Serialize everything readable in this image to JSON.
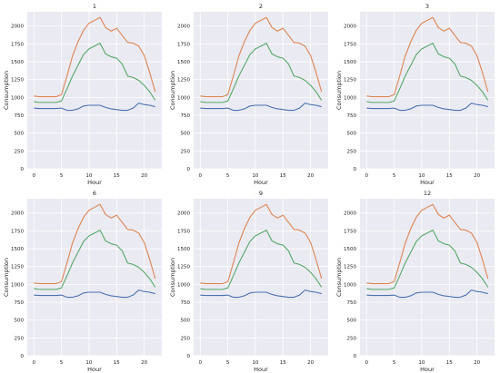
{
  "figure": {
    "colors": {
      "background": "#ffffff",
      "plot_bg": "#eaeaf2",
      "grid": "#ffffff",
      "text": "#222222",
      "series_blue": "#4c72b0",
      "series_orange": "#dd8452",
      "series_green": "#55a868"
    }
  },
  "chart_data": [
    {
      "type": "line",
      "title": "1",
      "xlabel": "Hour",
      "ylabel": "Consumption",
      "xlim": [
        -1.2,
        23.2
      ],
      "ylim": [
        0,
        2200
      ],
      "xticks": [
        0,
        5,
        10,
        15,
        20
      ],
      "yticks": [
        0,
        250,
        500,
        750,
        1000,
        1250,
        1500,
        1750,
        2000
      ],
      "grid": true,
      "x": [
        0,
        1,
        2,
        3,
        4,
        5,
        6,
        7,
        8,
        9,
        10,
        11,
        12,
        13,
        14,
        15,
        16,
        17,
        18,
        19,
        20,
        21,
        22
      ],
      "series": [
        {
          "color": "#dd8452",
          "values": [
            1020,
            1010,
            1010,
            1010,
            1010,
            1040,
            1300,
            1580,
            1780,
            1940,
            2040,
            2080,
            2120,
            1980,
            1930,
            1970,
            1870,
            1770,
            1760,
            1720,
            1590,
            1350,
            1080
          ]
        },
        {
          "color": "#55a868",
          "values": [
            940,
            930,
            930,
            930,
            930,
            950,
            1120,
            1300,
            1450,
            1600,
            1680,
            1720,
            1760,
            1610,
            1570,
            1550,
            1470,
            1300,
            1280,
            1240,
            1170,
            1080,
            960
          ]
        },
        {
          "color": "#4c72b0",
          "values": [
            850,
            845,
            845,
            845,
            845,
            850,
            820,
            820,
            840,
            880,
            890,
            890,
            890,
            860,
            840,
            830,
            820,
            820,
            850,
            920,
            900,
            890,
            870
          ]
        }
      ]
    },
    {
      "type": "line",
      "title": "2",
      "xlabel": "Hour",
      "ylabel": "Consumption",
      "xlim": [
        -1.2,
        23.2
      ],
      "ylim": [
        0,
        2200
      ],
      "xticks": [
        0,
        5,
        10,
        15,
        20
      ],
      "yticks": [
        0,
        250,
        500,
        750,
        1000,
        1250,
        1500,
        1750,
        2000
      ],
      "grid": true,
      "x": [
        0,
        1,
        2,
        3,
        4,
        5,
        6,
        7,
        8,
        9,
        10,
        11,
        12,
        13,
        14,
        15,
        16,
        17,
        18,
        19,
        20,
        21,
        22
      ],
      "series": [
        {
          "color": "#dd8452",
          "values": [
            1020,
            1010,
            1010,
            1010,
            1010,
            1040,
            1300,
            1580,
            1780,
            1940,
            2040,
            2080,
            2120,
            1980,
            1930,
            1970,
            1870,
            1770,
            1760,
            1720,
            1590,
            1350,
            1080
          ]
        },
        {
          "color": "#55a868",
          "values": [
            940,
            930,
            930,
            930,
            930,
            950,
            1120,
            1300,
            1450,
            1600,
            1680,
            1720,
            1760,
            1610,
            1570,
            1550,
            1470,
            1300,
            1280,
            1240,
            1170,
            1080,
            960
          ]
        },
        {
          "color": "#4c72b0",
          "values": [
            850,
            845,
            845,
            845,
            845,
            850,
            820,
            820,
            840,
            880,
            890,
            890,
            890,
            860,
            840,
            830,
            820,
            820,
            850,
            920,
            900,
            890,
            870
          ]
        }
      ]
    },
    {
      "type": "line",
      "title": "3",
      "xlabel": "Hour",
      "ylabel": "Consumption",
      "xlim": [
        -1.2,
        23.2
      ],
      "ylim": [
        0,
        2200
      ],
      "xticks": [
        0,
        5,
        10,
        15,
        20
      ],
      "yticks": [
        0,
        250,
        500,
        750,
        1000,
        1250,
        1500,
        1750,
        2000
      ],
      "grid": true,
      "x": [
        0,
        1,
        2,
        3,
        4,
        5,
        6,
        7,
        8,
        9,
        10,
        11,
        12,
        13,
        14,
        15,
        16,
        17,
        18,
        19,
        20,
        21,
        22
      ],
      "series": [
        {
          "color": "#dd8452",
          "values": [
            1020,
            1010,
            1010,
            1010,
            1010,
            1040,
            1300,
            1580,
            1780,
            1940,
            2040,
            2080,
            2120,
            1980,
            1930,
            1970,
            1870,
            1770,
            1760,
            1720,
            1590,
            1350,
            1080
          ]
        },
        {
          "color": "#55a868",
          "values": [
            940,
            930,
            930,
            930,
            930,
            950,
            1120,
            1300,
            1450,
            1600,
            1680,
            1720,
            1760,
            1610,
            1570,
            1550,
            1470,
            1300,
            1280,
            1240,
            1170,
            1080,
            960
          ]
        },
        {
          "color": "#4c72b0",
          "values": [
            850,
            845,
            845,
            845,
            845,
            850,
            820,
            820,
            840,
            880,
            890,
            890,
            890,
            860,
            840,
            830,
            820,
            820,
            850,
            920,
            900,
            890,
            870
          ]
        }
      ]
    },
    {
      "type": "line",
      "title": "6",
      "xlabel": "Hour",
      "ylabel": "Consumption",
      "xlim": [
        -1.2,
        23.2
      ],
      "ylim": [
        0,
        2200
      ],
      "xticks": [
        0,
        5,
        10,
        15,
        20
      ],
      "yticks": [
        0,
        250,
        500,
        750,
        1000,
        1250,
        1500,
        1750,
        2000
      ],
      "grid": true,
      "x": [
        0,
        1,
        2,
        3,
        4,
        5,
        6,
        7,
        8,
        9,
        10,
        11,
        12,
        13,
        14,
        15,
        16,
        17,
        18,
        19,
        20,
        21,
        22
      ],
      "series": [
        {
          "color": "#dd8452",
          "values": [
            1020,
            1010,
            1010,
            1010,
            1010,
            1040,
            1300,
            1580,
            1780,
            1940,
            2040,
            2080,
            2120,
            1980,
            1930,
            1970,
            1870,
            1770,
            1760,
            1720,
            1590,
            1350,
            1080
          ]
        },
        {
          "color": "#55a868",
          "values": [
            940,
            930,
            930,
            930,
            930,
            950,
            1120,
            1300,
            1450,
            1600,
            1680,
            1720,
            1760,
            1610,
            1570,
            1550,
            1470,
            1300,
            1280,
            1240,
            1170,
            1080,
            960
          ]
        },
        {
          "color": "#4c72b0",
          "values": [
            850,
            845,
            845,
            845,
            845,
            850,
            820,
            820,
            840,
            880,
            890,
            890,
            890,
            860,
            840,
            830,
            820,
            820,
            850,
            920,
            900,
            890,
            870
          ]
        }
      ]
    },
    {
      "type": "line",
      "title": "9",
      "xlabel": "Hour",
      "ylabel": "Consumption",
      "xlim": [
        -1.2,
        23.2
      ],
      "ylim": [
        0,
        2200
      ],
      "xticks": [
        0,
        5,
        10,
        15,
        20
      ],
      "yticks": [
        0,
        250,
        500,
        750,
        1000,
        1250,
        1500,
        1750,
        2000
      ],
      "grid": true,
      "x": [
        0,
        1,
        2,
        3,
        4,
        5,
        6,
        7,
        8,
        9,
        10,
        11,
        12,
        13,
        14,
        15,
        16,
        17,
        18,
        19,
        20,
        21,
        22
      ],
      "series": [
        {
          "color": "#dd8452",
          "values": [
            1020,
            1010,
            1010,
            1010,
            1010,
            1040,
            1300,
            1580,
            1780,
            1940,
            2040,
            2080,
            2120,
            1980,
            1930,
            1970,
            1870,
            1770,
            1760,
            1720,
            1590,
            1350,
            1080
          ]
        },
        {
          "color": "#55a868",
          "values": [
            940,
            930,
            930,
            930,
            930,
            950,
            1120,
            1300,
            1450,
            1600,
            1680,
            1720,
            1760,
            1610,
            1570,
            1550,
            1470,
            1300,
            1280,
            1240,
            1170,
            1080,
            960
          ]
        },
        {
          "color": "#4c72b0",
          "values": [
            850,
            845,
            845,
            845,
            845,
            850,
            820,
            820,
            840,
            880,
            890,
            890,
            890,
            860,
            840,
            830,
            820,
            820,
            850,
            920,
            900,
            890,
            870
          ]
        }
      ]
    },
    {
      "type": "line",
      "title": "12",
      "xlabel": "Hour",
      "ylabel": "Consumption",
      "xlim": [
        -1.2,
        23.2
      ],
      "ylim": [
        0,
        2200
      ],
      "xticks": [
        0,
        5,
        10,
        15,
        20
      ],
      "yticks": [
        0,
        250,
        500,
        750,
        1000,
        1250,
        1500,
        1750,
        2000
      ],
      "grid": true,
      "x": [
        0,
        1,
        2,
        3,
        4,
        5,
        6,
        7,
        8,
        9,
        10,
        11,
        12,
        13,
        14,
        15,
        16,
        17,
        18,
        19,
        20,
        21,
        22
      ],
      "series": [
        {
          "color": "#dd8452",
          "values": [
            1020,
            1010,
            1010,
            1010,
            1010,
            1040,
            1300,
            1580,
            1780,
            1940,
            2040,
            2080,
            2120,
            1980,
            1930,
            1970,
            1870,
            1770,
            1760,
            1720,
            1590,
            1350,
            1080
          ]
        },
        {
          "color": "#55a868",
          "values": [
            940,
            930,
            930,
            930,
            930,
            950,
            1120,
            1300,
            1450,
            1600,
            1680,
            1720,
            1760,
            1610,
            1570,
            1550,
            1470,
            1300,
            1280,
            1240,
            1170,
            1080,
            960
          ]
        },
        {
          "color": "#4c72b0",
          "values": [
            850,
            845,
            845,
            845,
            845,
            850,
            820,
            820,
            840,
            880,
            890,
            890,
            890,
            860,
            840,
            830,
            820,
            820,
            850,
            920,
            900,
            890,
            870
          ]
        }
      ]
    }
  ]
}
